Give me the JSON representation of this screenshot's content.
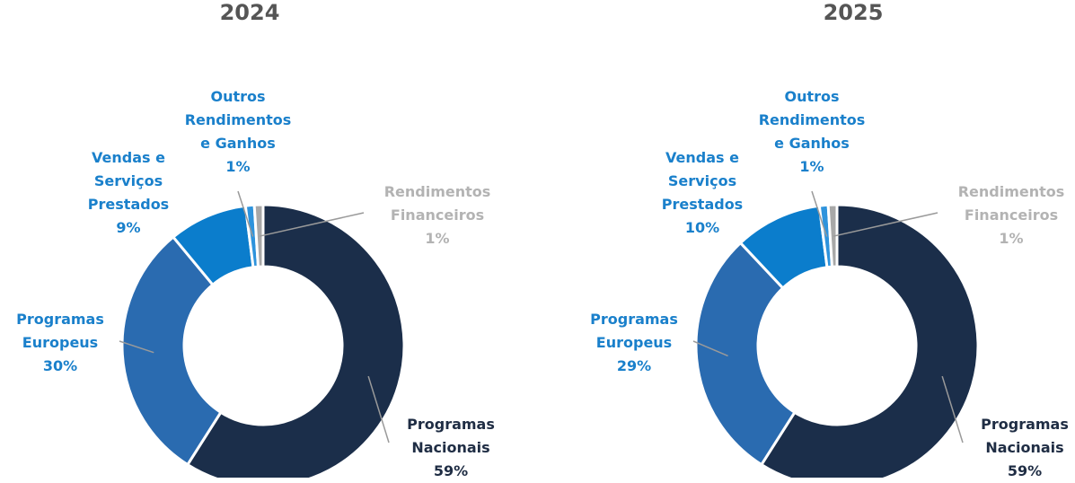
{
  "chart_data": [
    {
      "type": "donut",
      "title": "2024",
      "categories": [
        "Programas Nacionais",
        "Programas Europeus",
        "Vendas e Serviços Prestados",
        "Outros Rendimentos e Ganhos",
        "Rendimentos Financeiros"
      ],
      "values": [
        59,
        30,
        9,
        1,
        1
      ],
      "value_labels": [
        "59%",
        "30%",
        "9%",
        "1%",
        "1%"
      ],
      "colors": [
        "#1b2e4a",
        "#2a6bb0",
        "#0b7dcc",
        "#2e93dc",
        "#a8a8a8"
      ],
      "label_colors": [
        "#1f2d44",
        "#1a80cb",
        "#1a80cb",
        "#1a80cb",
        "#b3b3b3"
      ]
    },
    {
      "type": "donut",
      "title": "2025",
      "categories": [
        "Programas Nacionais",
        "Programas Europeus",
        "Vendas e Serviços Prestados",
        "Outros Rendimentos e Ganhos",
        "Rendimentos Financeiros"
      ],
      "values": [
        59,
        29,
        10,
        1,
        1
      ],
      "value_labels": [
        "59%",
        "29%",
        "10%",
        "1%",
        "1%"
      ],
      "colors": [
        "#1b2e4a",
        "#2a6bb0",
        "#0b7dcc",
        "#2e93dc",
        "#a8a8a8"
      ],
      "label_colors": [
        "#1f2d44",
        "#1a80cb",
        "#1a80cb",
        "#1a80cb",
        "#b3b3b3"
      ]
    }
  ]
}
